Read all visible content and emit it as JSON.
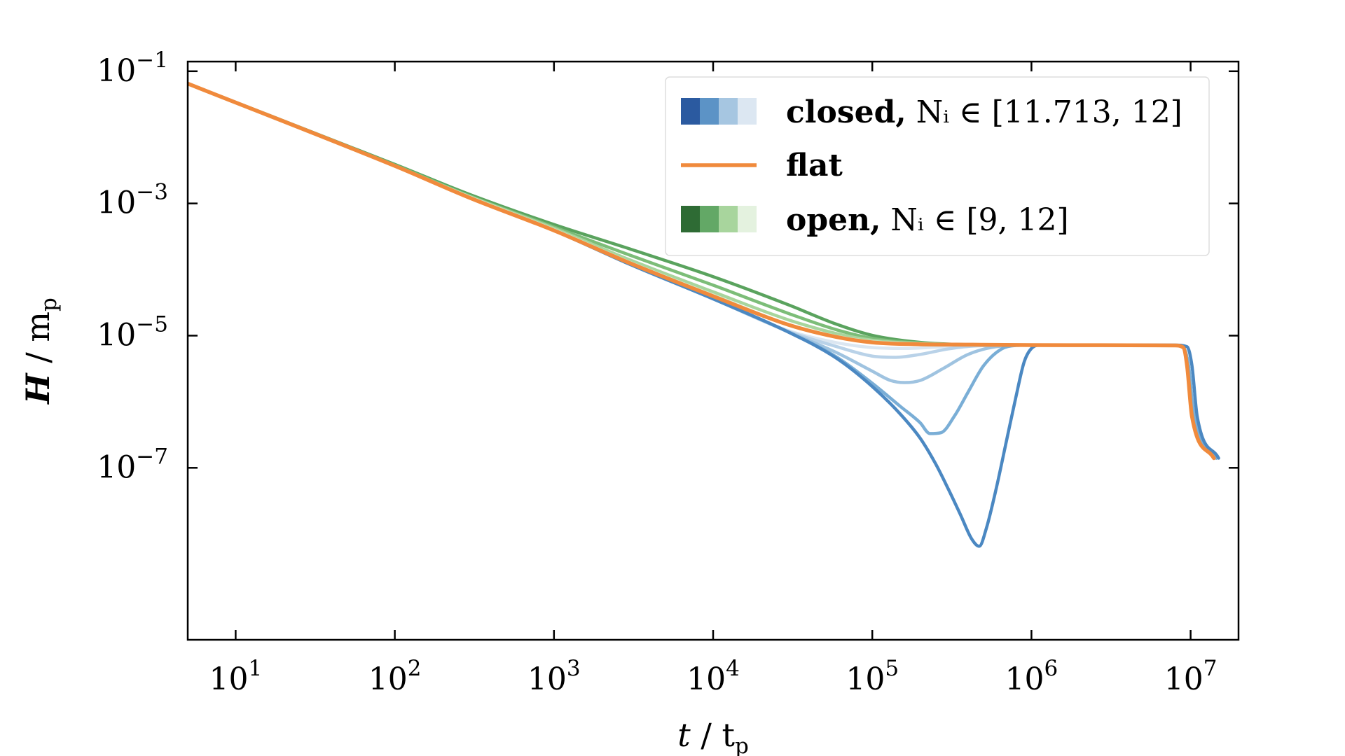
{
  "chart_data": {
    "type": "line",
    "xlabel": "t / tₚ",
    "ylabel": "H / mₚ",
    "xscale": "log",
    "yscale": "log",
    "xlim": [
      5,
      20000000
    ],
    "ylim": [
      2.5e-10,
      0.14
    ],
    "x_ticks": [
      {
        "value": 10,
        "base": "10",
        "exp": "1"
      },
      {
        "value": 100,
        "base": "10",
        "exp": "2"
      },
      {
        "value": 1000,
        "base": "10",
        "exp": "3"
      },
      {
        "value": 10000,
        "base": "10",
        "exp": "4"
      },
      {
        "value": 100000,
        "base": "10",
        "exp": "5"
      },
      {
        "value": 1000000,
        "base": "10",
        "exp": "6"
      },
      {
        "value": 10000000,
        "base": "10",
        "exp": "7"
      }
    ],
    "y_ticks": [
      {
        "value": 0.1,
        "base": "10",
        "exp": "−1"
      },
      {
        "value": 0.001,
        "base": "10",
        "exp": "−3"
      },
      {
        "value": 1e-05,
        "base": "10",
        "exp": "−5"
      },
      {
        "value": 1e-07,
        "base": "10",
        "exp": "−7"
      }
    ],
    "legend": {
      "placement": "top-right",
      "entries": [
        {
          "label_bold": "closed,",
          "label_math": "Nᵢ ∈ [11.713, 12]",
          "swatches": [
            "#2b5aa0",
            "#5c93c6",
            "#a6c6e1",
            "#dce7f2"
          ]
        },
        {
          "label_bold": "flat",
          "label_math": "",
          "line_color": "#f08a3c"
        },
        {
          "label_bold": "open,",
          "label_math": "Nᵢ ∈ [9, 12]",
          "swatches": [
            "#2e6b34",
            "#63a866",
            "#a8d59d",
            "#e4f2df"
          ]
        }
      ]
    },
    "series": [
      {
        "group": "open",
        "color": "#5aa35e",
        "width": 4.5,
        "points": [
          [
            5,
            0.065
          ],
          [
            100,
            0.0039
          ],
          [
            300,
            0.00135
          ],
          [
            1000,
            0.00048
          ],
          [
            3000,
            0.000205
          ],
          [
            10000,
            7.8e-05
          ],
          [
            30000,
            2.9e-05
          ],
          [
            60000,
            1.48e-05
          ],
          [
            100000,
            1.01e-05
          ],
          [
            200000,
            7.9e-06
          ],
          [
            400000,
            7.3e-06
          ],
          [
            1000000,
            7.2e-06
          ],
          [
            8000000,
            7.1e-06
          ],
          [
            9000000,
            6.6e-06
          ],
          [
            9700000,
            3.5e-06
          ],
          [
            10500000,
            6e-07
          ],
          [
            14500000,
            1.4e-07
          ]
        ]
      },
      {
        "group": "open",
        "color": "#7cbd78",
        "width": 4.5,
        "points": [
          [
            5,
            0.065
          ],
          [
            100,
            0.0038
          ],
          [
            300,
            0.00128
          ],
          [
            1000,
            0.00044
          ],
          [
            3000,
            0.000165
          ],
          [
            10000,
            5.8e-05
          ],
          [
            30000,
            2.15e-05
          ],
          [
            60000,
            1.22e-05
          ],
          [
            100000,
            9.1e-06
          ],
          [
            200000,
            7.7e-06
          ],
          [
            400000,
            7.3e-06
          ],
          [
            1000000,
            7.2e-06
          ],
          [
            8000000,
            7.1e-06
          ],
          [
            9000000,
            6.6e-06
          ],
          [
            9700000,
            3.5e-06
          ],
          [
            10500000,
            6e-07
          ],
          [
            14500000,
            1.4e-07
          ]
        ]
      },
      {
        "group": "open",
        "color": "#a8d59d",
        "width": 4.5,
        "points": [
          [
            5,
            0.065
          ],
          [
            100,
            0.0037
          ],
          [
            300,
            0.00125
          ],
          [
            1000,
            0.00042
          ],
          [
            3000,
            0.00014
          ],
          [
            10000,
            4.6e-05
          ],
          [
            30000,
            1.72e-05
          ],
          [
            60000,
            1.07e-05
          ],
          [
            100000,
            8.5e-06
          ],
          [
            200000,
            7.6e-06
          ],
          [
            400000,
            7.3e-06
          ],
          [
            1000000,
            7.2e-06
          ],
          [
            8000000,
            7.1e-06
          ],
          [
            9000000,
            6.6e-06
          ],
          [
            9700000,
            3.5e-06
          ],
          [
            10500000,
            6e-07
          ],
          [
            14500000,
            1.4e-07
          ]
        ]
      },
      {
        "group": "open",
        "color": "#d4ebcc",
        "width": 4.5,
        "points": [
          [
            5,
            0.065
          ],
          [
            100,
            0.0037
          ],
          [
            300,
            0.00123
          ],
          [
            1000,
            0.0004
          ],
          [
            3000,
            0.000128
          ],
          [
            10000,
            4.1e-05
          ],
          [
            30000,
            1.46e-05
          ],
          [
            60000,
            9.7e-06
          ],
          [
            100000,
            8.1e-06
          ],
          [
            200000,
            7.5e-06
          ],
          [
            400000,
            7.3e-06
          ],
          [
            1000000,
            7.2e-06
          ],
          [
            8000000,
            7.1e-06
          ],
          [
            9000000,
            6.6e-06
          ],
          [
            9700000,
            3.5e-06
          ],
          [
            10500000,
            6e-07
          ],
          [
            14500000,
            1.4e-07
          ]
        ]
      },
      {
        "group": "closed",
        "color": "#dbe6f1",
        "width": 4.5,
        "points": [
          [
            5,
            0.065
          ],
          [
            100,
            0.0037
          ],
          [
            300,
            0.0012
          ],
          [
            1000,
            0.00039
          ],
          [
            3000,
            0.00012
          ],
          [
            10000,
            3.6e-05
          ],
          [
            30000,
            1.18e-05
          ],
          [
            60000,
            7.8e-06
          ],
          [
            100000,
            6.6e-06
          ],
          [
            160000,
            6.4e-06
          ],
          [
            250000,
            6.7e-06
          ],
          [
            400000,
            7.1e-06
          ],
          [
            1000000,
            7.2e-06
          ],
          [
            8000000,
            7.1e-06
          ],
          [
            9000000,
            6.6e-06
          ],
          [
            9700000,
            3.5e-06
          ],
          [
            10500000,
            6e-07
          ],
          [
            14500000,
            1.4e-07
          ]
        ]
      },
      {
        "group": "closed",
        "color": "#b9d2e8",
        "width": 4.5,
        "points": [
          [
            5,
            0.065
          ],
          [
            100,
            0.0037
          ],
          [
            300,
            0.0012
          ],
          [
            1000,
            0.00039
          ],
          [
            3000,
            0.00012
          ],
          [
            10000,
            3.6e-05
          ],
          [
            30000,
            1.15e-05
          ],
          [
            60000,
            6.8e-06
          ],
          [
            100000,
            4.9e-06
          ],
          [
            140000,
            4.7e-06
          ],
          [
            200000,
            5.2e-06
          ],
          [
            300000,
            6.3e-06
          ],
          [
            450000,
            7e-06
          ],
          [
            1000000,
            7.2e-06
          ],
          [
            8000000,
            7.1e-06
          ],
          [
            9000000,
            6.6e-06
          ],
          [
            9700000,
            3.5e-06
          ],
          [
            10500000,
            6e-07
          ],
          [
            14500000,
            1.4e-07
          ]
        ]
      },
      {
        "group": "closed",
        "color": "#9fc3e0",
        "width": 4.5,
        "points": [
          [
            5,
            0.065
          ],
          [
            100,
            0.0037
          ],
          [
            300,
            0.0012
          ],
          [
            1000,
            0.00039
          ],
          [
            3000,
            0.00012
          ],
          [
            10000,
            3.6e-05
          ],
          [
            30000,
            1.13e-05
          ],
          [
            60000,
            5.5e-06
          ],
          [
            100000,
            2.9e-06
          ],
          [
            130000,
            2.1e-06
          ],
          [
            160000,
            1.95e-06
          ],
          [
            200000,
            2.1e-06
          ],
          [
            280000,
            3.2e-06
          ],
          [
            400000,
            5.2e-06
          ],
          [
            600000,
            6.8e-06
          ],
          [
            1000000,
            7.2e-06
          ],
          [
            8000000,
            7.1e-06
          ],
          [
            9000000,
            6.6e-06
          ],
          [
            9700000,
            3.5e-06
          ],
          [
            10500000,
            6e-07
          ],
          [
            14500000,
            1.4e-07
          ]
        ]
      },
      {
        "group": "closed",
        "color": "#7aaed6",
        "width": 4.5,
        "points": [
          [
            5,
            0.065
          ],
          [
            100,
            0.0037
          ],
          [
            300,
            0.0012
          ],
          [
            1000,
            0.00039
          ],
          [
            3000,
            0.00012
          ],
          [
            10000,
            3.6e-05
          ],
          [
            30000,
            1.12e-05
          ],
          [
            60000,
            4.7e-06
          ],
          [
            100000,
            1.9e-06
          ],
          [
            150000,
            8.5e-07
          ],
          [
            200000,
            4.8e-07
          ],
          [
            230000,
            3.3e-07
          ],
          [
            270000,
            3.4e-07
          ],
          [
            330000,
            6.2e-07
          ],
          [
            400000,
            1.4e-06
          ],
          [
            500000,
            3.5e-06
          ],
          [
            650000,
            6.3e-06
          ],
          [
            800000,
            7.1e-06
          ],
          [
            1000000,
            7.2e-06
          ],
          [
            8000000,
            7.1e-06
          ],
          [
            9000000,
            6.6e-06
          ],
          [
            9700000,
            3.5e-06
          ],
          [
            10500000,
            6e-07
          ],
          [
            14500000,
            1.4e-07
          ]
        ]
      },
      {
        "group": "closed",
        "color": "#4b88c2",
        "width": 4.5,
        "points": [
          [
            5,
            0.065
          ],
          [
            100,
            0.0037
          ],
          [
            300,
            0.0012
          ],
          [
            1000,
            0.00039
          ],
          [
            3000,
            0.00012
          ],
          [
            10000,
            3.6e-05
          ],
          [
            30000,
            1.12e-05
          ],
          [
            60000,
            4.5e-06
          ],
          [
            100000,
            1.7e-06
          ],
          [
            150000,
            6.5e-07
          ],
          [
            200000,
            2.8e-07
          ],
          [
            250000,
            1.15e-07
          ],
          [
            300000,
            4.8e-08
          ],
          [
            360000,
            1.9e-08
          ],
          [
            420000,
            8.5e-09
          ],
          [
            470000,
            6.5e-09
          ],
          [
            520000,
            1.2e-08
          ],
          [
            600000,
            4.8e-08
          ],
          [
            700000,
            2.7e-07
          ],
          [
            800000,
            1.2e-06
          ],
          [
            900000,
            4e-06
          ],
          [
            1000000,
            6.4e-06
          ],
          [
            1150000,
            7.2e-06
          ],
          [
            8000000,
            7.2e-06
          ],
          [
            9500000,
            6.8e-06
          ],
          [
            10200000,
            3.5e-06
          ],
          [
            11000000,
            6e-07
          ],
          [
            15000000,
            1.4e-07
          ]
        ]
      },
      {
        "group": "flat",
        "color": "#f08a3c",
        "width": 5.5,
        "points": [
          [
            5,
            0.065
          ],
          [
            100,
            0.0037
          ],
          [
            300,
            0.0012
          ],
          [
            1000,
            0.00039
          ],
          [
            3000,
            0.000125
          ],
          [
            10000,
            3.95e-05
          ],
          [
            30000,
            1.45e-05
          ],
          [
            60000,
            9.5e-06
          ],
          [
            100000,
            7.9e-06
          ],
          [
            200000,
            7.4e-06
          ],
          [
            400000,
            7.3e-06
          ],
          [
            1000000,
            7.2e-06
          ],
          [
            8000000,
            7.1e-06
          ],
          [
            9000000,
            6.6e-06
          ],
          [
            9500000,
            3.5e-06
          ],
          [
            10200000,
            6e-07
          ],
          [
            14000000,
            1.4e-07
          ]
        ]
      }
    ]
  }
}
